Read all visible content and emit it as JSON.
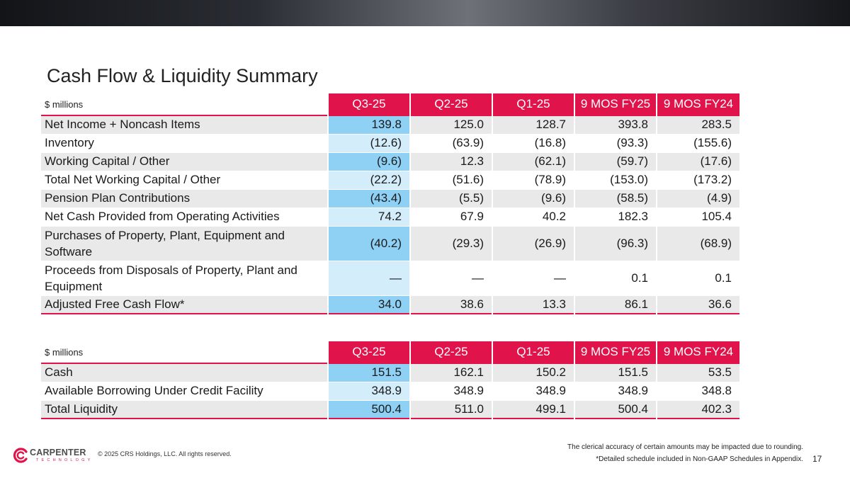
{
  "title": "Cash Flow & Liquidity Summary",
  "colors": {
    "accent": "#e0134a",
    "q3_dark": "#8fd0f5",
    "q3_light": "#d3edfb",
    "row_shade": "#e9e9e9"
  },
  "cash_flow": {
    "units": "$ millions",
    "columns": [
      "Q3-25",
      "Q2-25",
      "Q1-25",
      "9 MOS FY25",
      "9 MOS FY24"
    ],
    "rows": [
      {
        "label": "Net Income + Noncash Items",
        "values": [
          "139.8",
          "125.0",
          "128.7",
          "393.8",
          "283.5"
        ]
      },
      {
        "label": "Inventory",
        "values": [
          "(12.6)",
          "(63.9)",
          "(16.8)",
          "(93.3)",
          "(155.6)"
        ]
      },
      {
        "label": "Working Capital / Other",
        "values": [
          "(9.6)",
          "12.3",
          "(62.1)",
          "(59.7)",
          "(17.6)"
        ]
      },
      {
        "label": "Total Net Working Capital / Other",
        "values": [
          "(22.2)",
          "(51.6)",
          "(78.9)",
          "(153.0)",
          "(173.2)"
        ]
      },
      {
        "label": "Pension Plan Contributions",
        "values": [
          "(43.4)",
          "(5.5)",
          "(9.6)",
          "(58.5)",
          "(4.9)"
        ]
      },
      {
        "label": "Net Cash Provided from Operating Activities",
        "values": [
          "74.2",
          "67.9",
          "40.2",
          "182.3",
          "105.4"
        ]
      },
      {
        "label": "Purchases of Property, Plant, Equipment and Software",
        "values": [
          "(40.2)",
          "(29.3)",
          "(26.9)",
          "(96.3)",
          "(68.9)"
        ]
      },
      {
        "label": "Proceeds from Disposals of Property, Plant and Equipment",
        "values": [
          "—",
          "—",
          "—",
          "0.1",
          "0.1"
        ]
      },
      {
        "label": "Adjusted Free Cash Flow*",
        "values": [
          "34.0",
          "38.6",
          "13.3",
          "86.1",
          "36.6"
        ]
      }
    ]
  },
  "liquidity": {
    "units": "$ millions",
    "columns": [
      "Q3-25",
      "Q2-25",
      "Q1-25",
      "9 MOS FY25",
      "9 MOS FY24"
    ],
    "rows": [
      {
        "label": "Cash",
        "values": [
          "151.5",
          "162.1",
          "150.2",
          "151.5",
          "53.5"
        ]
      },
      {
        "label": "Available Borrowing Under Credit Facility",
        "values": [
          "348.9",
          "348.9",
          "348.9",
          "348.9",
          "348.8"
        ]
      },
      {
        "label": "Total Liquidity",
        "values": [
          "500.4",
          "511.0",
          "499.1",
          "500.4",
          "402.3"
        ]
      }
    ]
  },
  "footer": {
    "note_rounding": "The clerical accuracy of certain amounts may be impacted due to rounding.",
    "note_schedule": "*Detailed schedule included in Non-GAAP Schedules in Appendix.",
    "page_number": "17",
    "copyright": "© 2025 CRS Holdings, LLC. All rights reserved.",
    "logo_name": "CARPENTER",
    "logo_tagline": "TECHNOLOGY",
    "logo_icon": "carpenter-swirl-icon"
  }
}
